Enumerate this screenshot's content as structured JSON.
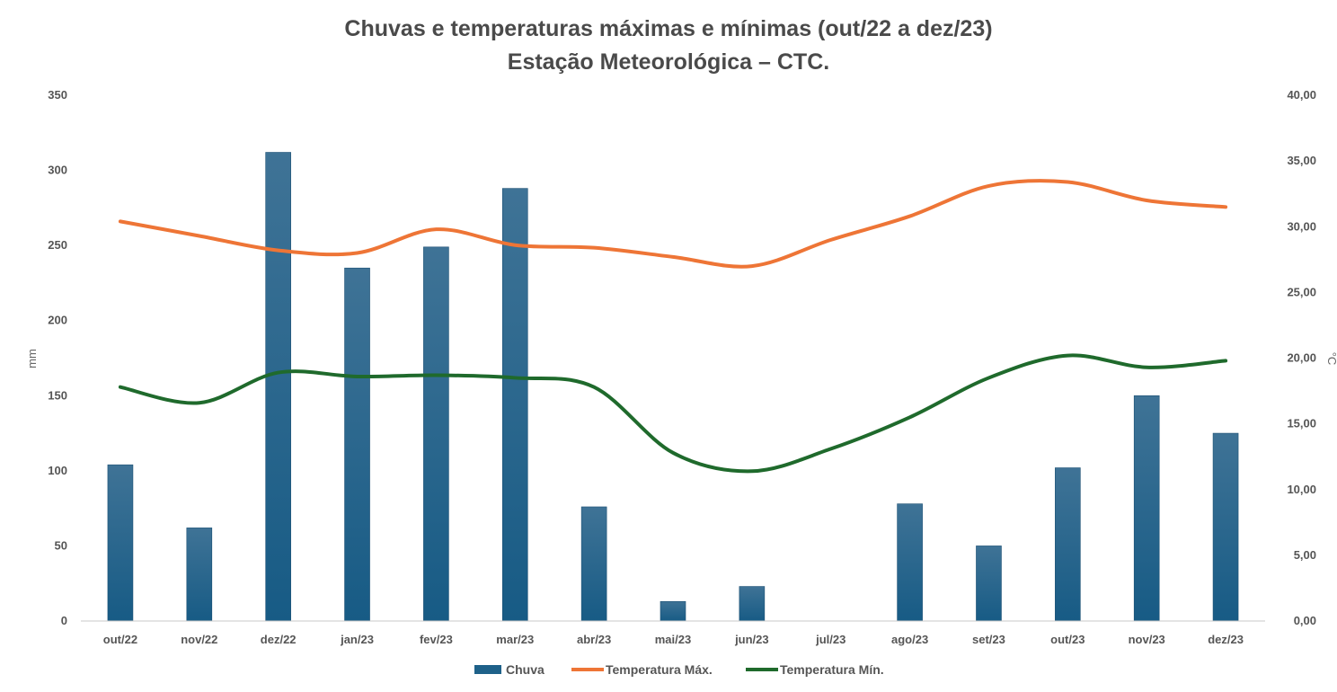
{
  "chart_data": {
    "type": "bar+line",
    "title_line1": "Chuvas e  temperaturas máximas e mínimas (out/22 a dez/23)",
    "title_line2": "Estação Meteorológica – CTC.",
    "categories": [
      "out/22",
      "nov/22",
      "dez/22",
      "jan/23",
      "fev/23",
      "mar/23",
      "abr/23",
      "mai/23",
      "jun/23",
      "jul/23",
      "ago/23",
      "set/23",
      "out/23",
      "nov/23",
      "dez/23"
    ],
    "y_left": {
      "label": "mm",
      "min": 0,
      "max": 350,
      "ticks": [
        "0",
        "50",
        "100",
        "150",
        "200",
        "250",
        "300",
        "350"
      ]
    },
    "y_right": {
      "label": "°C",
      "min": 0,
      "max": 40,
      "ticks": [
        "0,00",
        "5,00",
        "10,00",
        "15,00",
        "20,00",
        "25,00",
        "30,00",
        "35,00",
        "40,00"
      ]
    },
    "series": [
      {
        "name": "Chuva",
        "type": "bar",
        "axis": "left",
        "color": "#1e6189",
        "values": [
          104,
          62,
          312,
          235,
          249,
          288,
          76,
          13,
          23,
          0,
          78,
          50,
          102,
          150,
          125
        ]
      },
      {
        "name": "Temperatura Máx.",
        "type": "line",
        "axis": "right",
        "color": "#ee7536",
        "values": [
          30.4,
          29.3,
          28.2,
          28.0,
          29.8,
          28.6,
          28.4,
          27.7,
          27.0,
          29.0,
          30.8,
          33.1,
          33.4,
          32.0,
          31.5
        ]
      },
      {
        "name": "Temperatura Mín.",
        "type": "line",
        "axis": "right",
        "color": "#1f6a2c",
        "values": [
          17.8,
          16.6,
          18.9,
          18.6,
          18.7,
          18.5,
          17.8,
          12.8,
          11.4,
          13.1,
          15.5,
          18.5,
          20.2,
          19.3,
          19.8
        ]
      }
    ],
    "legend_position": "bottom",
    "grid": false
  }
}
